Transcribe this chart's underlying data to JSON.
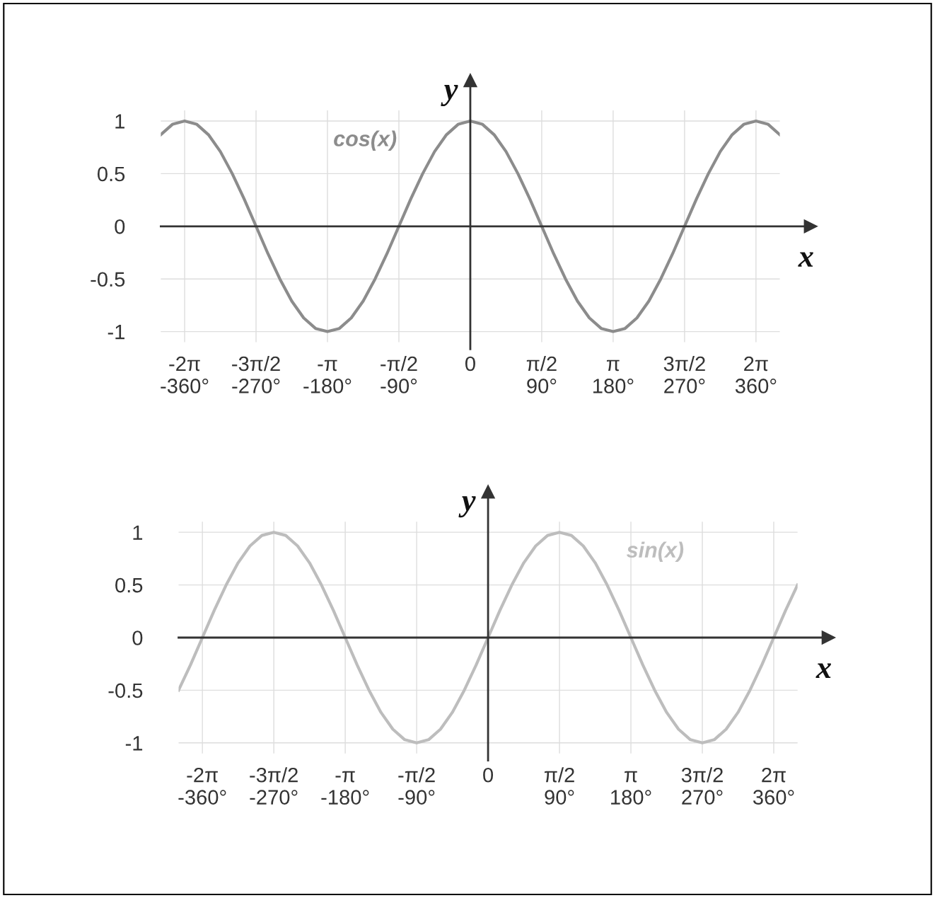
{
  "chart_data": [
    {
      "type": "line",
      "xlabel": "x",
      "ylabel": "y",
      "x": [
        -390,
        -375,
        -360,
        -345,
        -330,
        -315,
        -300,
        -285,
        -270,
        -255,
        -240,
        -225,
        -210,
        -195,
        -180,
        -165,
        -150,
        -135,
        -120,
        -105,
        -90,
        -75,
        -60,
        -45,
        -30,
        -15,
        0,
        15,
        30,
        45,
        60,
        75,
        90,
        105,
        120,
        135,
        150,
        165,
        180,
        195,
        210,
        225,
        240,
        255,
        270,
        285,
        300,
        315,
        330,
        345,
        360,
        375,
        390
      ],
      "series": [
        {
          "name": "cos(x)",
          "color": "#8c8c8c",
          "values": [
            0.87,
            0.97,
            1,
            0.97,
            0.87,
            0.71,
            0.5,
            0.26,
            0,
            -0.26,
            -0.5,
            -0.71,
            -0.87,
            -0.97,
            -1,
            -0.97,
            -0.87,
            -0.71,
            -0.5,
            -0.26,
            0,
            0.26,
            0.5,
            0.71,
            0.87,
            0.97,
            1,
            0.97,
            0.87,
            0.71,
            0.5,
            0.26,
            0,
            -0.26,
            -0.5,
            -0.71,
            -0.87,
            -0.97,
            -1,
            -0.97,
            -0.87,
            -0.71,
            -0.5,
            -0.26,
            0,
            0.26,
            0.5,
            0.71,
            0.87,
            0.97,
            1,
            0.97,
            0.87
          ]
        }
      ],
      "xlim": [
        -390,
        390
      ],
      "ylim": [
        -1.1,
        1.1
      ],
      "xticks": [
        {
          "value": -360,
          "label": "-2π\n-360°"
        },
        {
          "value": -270,
          "label": "-3π/2\n-270°"
        },
        {
          "value": -180,
          "label": "-π\n-180°"
        },
        {
          "value": -90,
          "label": "-π/2\n-90°"
        },
        {
          "value": 0,
          "label": "0\n "
        },
        {
          "value": 90,
          "label": "π/2\n90°"
        },
        {
          "value": 180,
          "label": "π\n180°"
        },
        {
          "value": 270,
          "label": "3π/2\n270°"
        },
        {
          "value": 360,
          "label": "2π\n360°"
        }
      ],
      "yticks": [
        1,
        0.5,
        0,
        -0.5,
        -1
      ],
      "grid": true,
      "legend": false,
      "line_style": "solid",
      "marker": "none"
    },
    {
      "type": "line",
      "xlabel": "x",
      "ylabel": "y",
      "x": [
        -390,
        -375,
        -360,
        -345,
        -330,
        -315,
        -300,
        -285,
        -270,
        -255,
        -240,
        -225,
        -210,
        -195,
        -180,
        -165,
        -150,
        -135,
        -120,
        -105,
        -90,
        -75,
        -60,
        -45,
        -30,
        -15,
        0,
        15,
        30,
        45,
        60,
        75,
        90,
        105,
        120,
        135,
        150,
        165,
        180,
        195,
        210,
        225,
        240,
        255,
        270,
        285,
        300,
        315,
        330,
        345,
        360,
        375,
        390
      ],
      "series": [
        {
          "name": "sin(x)",
          "color": "#bdbdbd",
          "values": [
            -0.5,
            -0.26,
            0,
            0.26,
            0.5,
            0.71,
            0.87,
            0.97,
            1,
            0.97,
            0.87,
            0.71,
            0.5,
            0.26,
            0,
            -0.26,
            -0.5,
            -0.71,
            -0.87,
            -0.97,
            -1,
            -0.97,
            -0.87,
            -0.71,
            -0.5,
            -0.26,
            0,
            0.26,
            0.5,
            0.71,
            0.87,
            0.97,
            1,
            0.97,
            0.87,
            0.71,
            0.5,
            0.26,
            0,
            -0.26,
            -0.5,
            -0.71,
            -0.87,
            -0.97,
            -1,
            -0.97,
            -0.87,
            -0.71,
            -0.5,
            -0.26,
            0,
            0.26,
            0.5
          ]
        }
      ],
      "xlim": [
        -390,
        390
      ],
      "ylim": [
        -1.1,
        1.1
      ],
      "xticks": [
        {
          "value": -360,
          "label": "-2π\n-360°"
        },
        {
          "value": -270,
          "label": "-3π/2\n-270°"
        },
        {
          "value": -180,
          "label": "-π\n-180°"
        },
        {
          "value": -90,
          "label": "-π/2\n-90°"
        },
        {
          "value": 0,
          "label": "0\n "
        },
        {
          "value": 90,
          "label": "π/2\n90°"
        },
        {
          "value": 180,
          "label": "π\n180°"
        },
        {
          "value": 270,
          "label": "3π/2\n270°"
        },
        {
          "value": 360,
          "label": "2π\n360°"
        }
      ],
      "yticks": [
        1,
        0.5,
        0,
        -0.5,
        -1
      ],
      "grid": true,
      "legend": false,
      "line_style": "solid",
      "marker": "none"
    }
  ]
}
